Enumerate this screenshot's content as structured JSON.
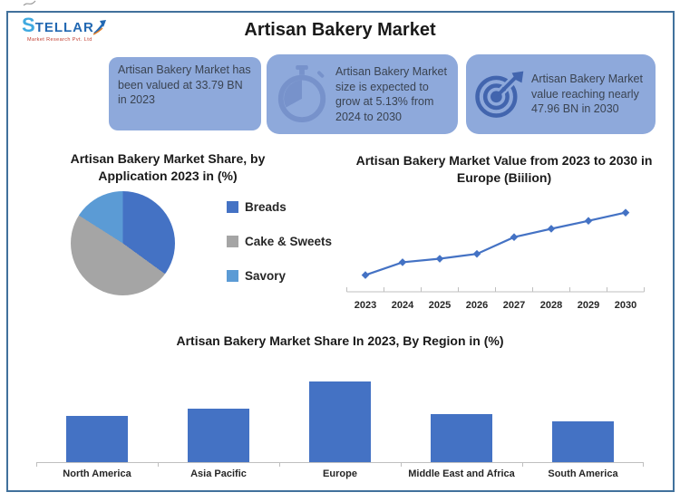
{
  "header": {
    "logo_text": "STELLAR",
    "logo_subtext": "Market Research Pvt. Ltd",
    "title": "Artisan Bakery Market"
  },
  "callouts": [
    {
      "icon": null,
      "text": "Artisan Bakery Market has been valued at 33.79 BN in 2023"
    },
    {
      "icon": "stopwatch-icon",
      "text": "Artisan Bakery Market size is expected to grow at 5.13% from 2024 to 2030"
    },
    {
      "icon": "target-icon",
      "text": "Artisan Bakery Market value reaching nearly 47.96 BN in 2030"
    }
  ],
  "colors": {
    "accent_blue": "#4472C4",
    "gray": "#A5A5A5",
    "light_blue": "#5B9BD5",
    "callout_bg": "#8EA9DB",
    "frame_border": "#41719C",
    "icon_soft_blue": "#7792CB",
    "icon_dark_blue": "#4265AE",
    "axis_gray": "#BFBFBF"
  },
  "chart_data": [
    {
      "type": "pie",
      "title": "Artisan Bakery Market Share, by Application  2023 in (%)",
      "labels": [
        "Breads",
        "Cake & Sweets",
        "Savory"
      ],
      "values": [
        35,
        49,
        16
      ],
      "colors": [
        "#4472C4",
        "#A5A5A5",
        "#5B9BD5"
      ],
      "legend_position": "right"
    },
    {
      "type": "line",
      "title": "Artisan Bakery Market Value from 2023 to 2030 in Europe (Biilion)",
      "x": [
        "2023",
        "2024",
        "2025",
        "2026",
        "2027",
        "2028",
        "2029",
        "2030"
      ],
      "values": [
        33.79,
        36.7,
        37.5,
        38.6,
        42.4,
        44.3,
        46.1,
        47.96
      ],
      "color": "#4472C4",
      "marker": "diamond",
      "ylim": [
        30,
        52
      ],
      "grid": false,
      "y_axis_labels": false
    },
    {
      "type": "bar",
      "title": "Artisan Bakery Market Share In 2023, By Region in (%)",
      "categories": [
        "North America",
        "Asia Pacific",
        "Europe",
        "Middle East and Africa",
        "South America"
      ],
      "values": [
        17,
        20,
        30,
        18,
        15
      ],
      "color": "#4472C4",
      "ylim": [
        0,
        35
      ]
    }
  ]
}
